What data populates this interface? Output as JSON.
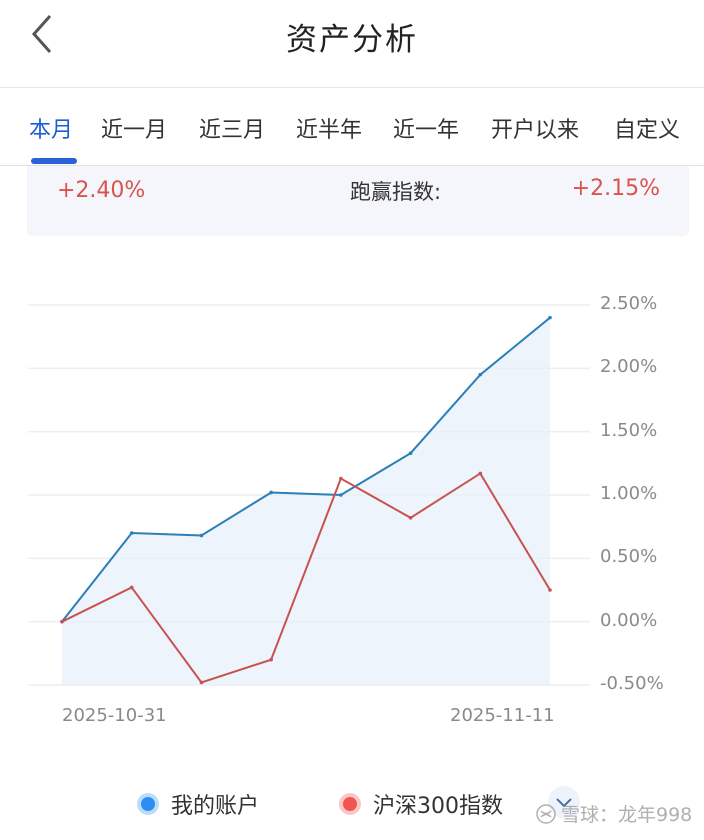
{
  "header": {
    "title": "资产分析",
    "back_icon": "chevron-left-icon"
  },
  "tabs": [
    {
      "label": "本月",
      "active": true
    },
    {
      "label": "近一月",
      "active": false
    },
    {
      "label": "近三月",
      "active": false
    },
    {
      "label": "近半年",
      "active": false
    },
    {
      "label": "近一年",
      "active": false
    },
    {
      "label": "开户以来",
      "active": false
    },
    {
      "label": "自定义",
      "active": false
    }
  ],
  "summary": {
    "account_return": "+2.40%",
    "beat_label": "跑赢指数:",
    "beat_value": "+2.15%"
  },
  "legend": {
    "account": "我的账户",
    "index": "沪深300指数"
  },
  "watermark": "雪球：龙年998",
  "colors": {
    "accent": "#2a63d8",
    "positive": "#d9534f",
    "account_line": "#2b7fb8",
    "index_line": "#c9524e",
    "account_dot": "#2b8ef0",
    "index_dot": "#f0554f",
    "area_fill": "#e6f0fb"
  },
  "chart_data": {
    "type": "line",
    "title": "",
    "xlabel": "",
    "ylabel": "",
    "x_tick_labels": [
      "2025-10-31",
      "2025-11-11"
    ],
    "x": [
      "2025-10-31",
      "p2",
      "p3",
      "p4",
      "p5",
      "p6",
      "p7",
      "2025-11-11"
    ],
    "y_ticks": [
      "2.50%",
      "2.00%",
      "1.50%",
      "1.00%",
      "0.50%",
      "0.00%",
      "-0.50%"
    ],
    "ylim": [
      -0.5,
      2.5
    ],
    "grid": true,
    "legend_position": "bottom",
    "series": [
      {
        "name": "我的账户",
        "values": [
          0.0,
          0.7,
          0.68,
          1.02,
          1.0,
          1.33,
          1.95,
          2.4
        ],
        "area": true
      },
      {
        "name": "沪深300指数",
        "values": [
          0.0,
          0.27,
          -0.48,
          -0.3,
          1.13,
          0.82,
          1.17,
          0.25
        ]
      }
    ]
  }
}
